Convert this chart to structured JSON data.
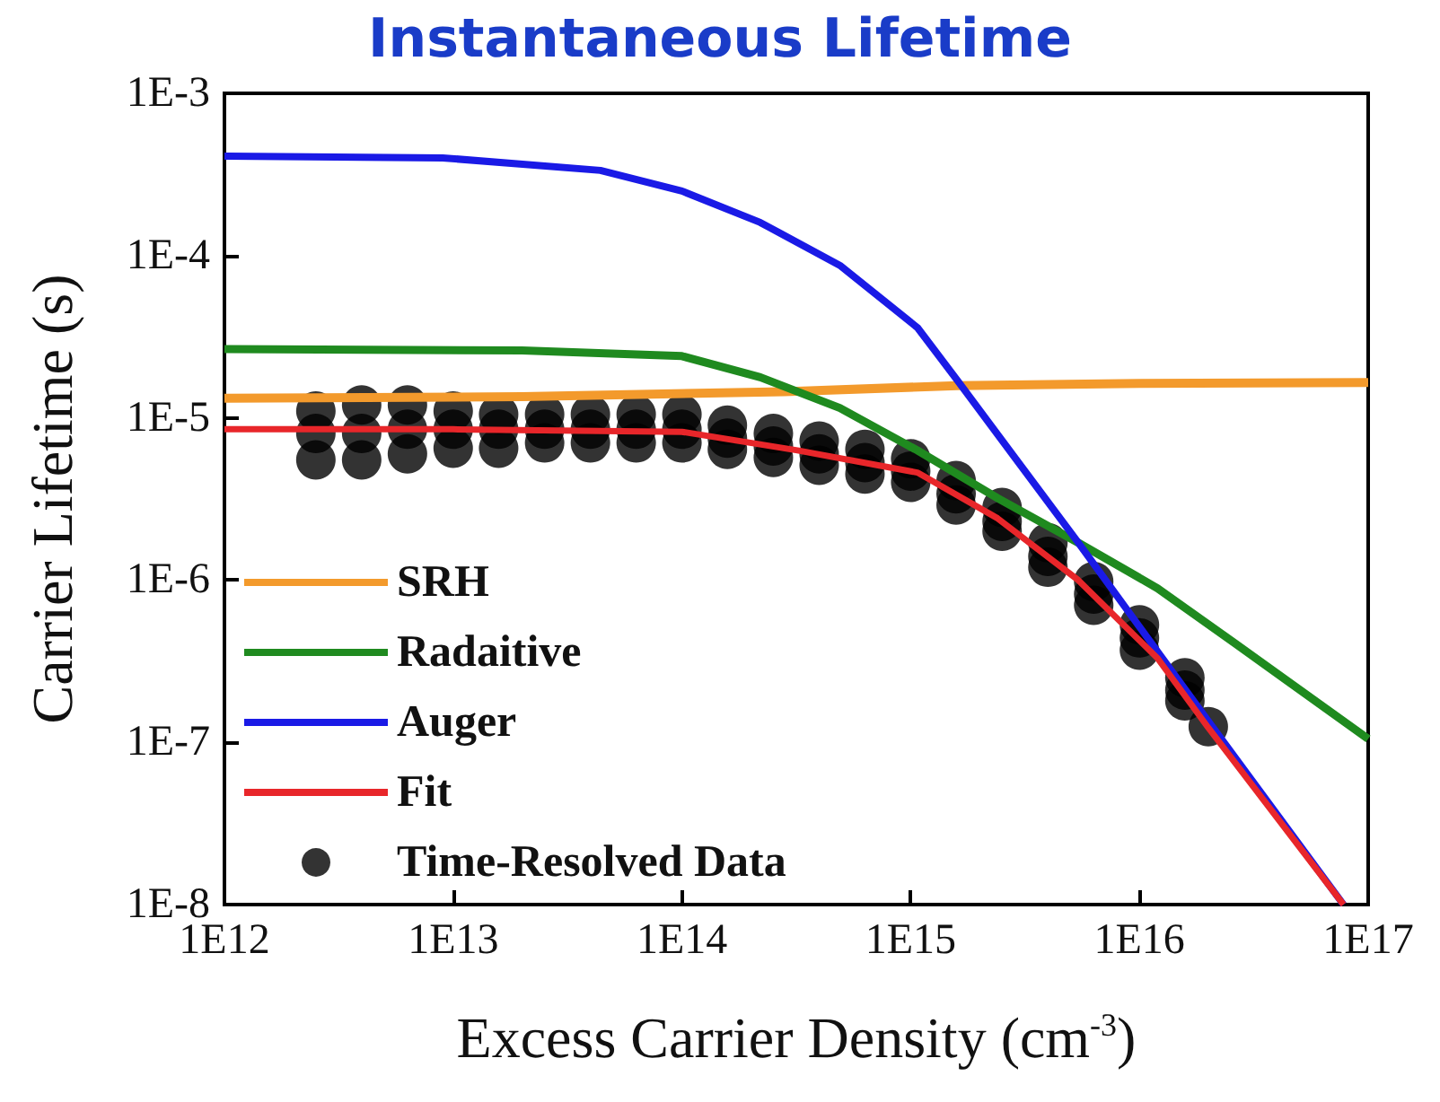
{
  "chart_data": {
    "type": "line",
    "title": "Instantaneous Lifetime",
    "xlabel": "Excess Carrier Density (cm$^{-3}$)",
    "ylabel": "Carrier Lifetime (s)",
    "log": "xy",
    "grid": false,
    "legend": "bottom left",
    "marker": "none",
    "xlim": [
      1000000000000.0,
      1e+17
    ],
    "xticks": [
      {
        "value": 1000000000000.0,
        "label": "1E12"
      },
      {
        "value": 10000000000000.0,
        "label": "1E13"
      },
      {
        "value": 100000000000000.0,
        "label": "1E14"
      },
      {
        "value": 1000000000000000.0,
        "label": "1E15"
      },
      {
        "value": 1e+16,
        "label": "1E16"
      },
      {
        "value": 1e+17,
        "label": "1E17"
      }
    ],
    "ylim": [
      1e-08,
      0.001
    ],
    "yticks": [
      {
        "value": 1e-08,
        "label": "1E-8"
      },
      {
        "value": 1e-07,
        "label": "1E-7"
      },
      {
        "value": 1e-06,
        "label": "1E-6"
      },
      {
        "value": 1e-05,
        "label": "1E-5"
      },
      {
        "value": 0.0001,
        "label": "1E-4"
      },
      {
        "value": 0.001,
        "label": "1E-3"
      }
    ],
    "series": [
      {
        "name": "SRH",
        "color": "#f39a2c",
        "x": [
          1000000000000.0,
          20000000000000.0,
          280000000000000.0,
          1600000000000000.0,
          1e+16,
          1e+17
        ],
        "values": [
          1.32e-05,
          1.35e-05,
          1.45e-05,
          1.58e-05,
          1.63e-05,
          1.65e-05
        ]
      },
      {
        "name": "Radaitive",
        "color": "#1f8a1f",
        "x": [
          1000000000000.0,
          20000000000000.0,
          100000000000000.0,
          220000000000000.0,
          490000000000000.0,
          1070000000000000.0,
          2400000000000000.0,
          5400000000000000.0,
          1.2e+16,
          2.6e+16,
          1e+17
        ],
        "values": [
          2.65e-05,
          2.6e-05,
          2.4e-05,
          1.78e-05,
          1.15e-05,
          6.3e-06,
          3.2e-06,
          1.7e-06,
          8.9e-07,
          4.1e-07,
          1.05e-07
        ]
      },
      {
        "name": "Auger",
        "color": "#1a1ae6",
        "x": [
          1000000000000.0,
          9000000000000.0,
          44000000000000.0,
          100000000000000.0,
          220000000000000.0,
          490000000000000.0,
          1070000000000000.0,
          1600000000000000.0,
          5400000000000000.0,
          2e+16,
          7.8e+16
        ],
        "values": [
          0.00041,
          0.0004,
          0.000335,
          0.00025,
          0.00016,
          8.7e-05,
          3.6e-05,
          1.7e-05,
          1.7e-06,
          1.35e-07,
          1e-08
        ]
      },
      {
        "name": "Fit",
        "color": "#e8262a",
        "x": [
          1000000000000.0,
          10000000000000.0,
          100000000000000.0,
          320000000000000.0,
          1070000000000000.0,
          2400000000000000.0,
          5400000000000000.0,
          1.2e+16,
          2e+16,
          7.8e+16
        ],
        "values": [
          8.5e-06,
          8.5e-06,
          8.2e-06,
          6.3e-06,
          4.6e-06,
          2.4e-06,
          1e-06,
          3.3e-07,
          1.23e-07,
          1e-08
        ]
      },
      {
        "name": "Time-Resolved Data",
        "type": "scatter",
        "marker": "circle",
        "color": "#000000",
        "x": [
          2510000000000.0,
          2510000000000.0,
          2510000000000.0,
          3980000000000.0,
          3980000000000.0,
          3980000000000.0,
          6310000000000.0,
          6310000000000.0,
          6310000000000.0,
          10000000000000.0,
          10000000000000.0,
          10000000000000.0,
          15800000000000.0,
          15800000000000.0,
          15800000000000.0,
          25100000000000.0,
          25100000000000.0,
          25100000000000.0,
          39800000000000.0,
          39800000000000.0,
          39800000000000.0,
          63100000000000.0,
          63100000000000.0,
          63100000000000.0,
          100000000000000.0,
          100000000000000.0,
          100000000000000.0,
          158000000000000.0,
          158000000000000.0,
          158000000000000.0,
          251000000000000.0,
          251000000000000.0,
          251000000000000.0,
          398000000000000.0,
          398000000000000.0,
          398000000000000.0,
          631000000000000.0,
          631000000000000.0,
          631000000000000.0,
          1000000000000000.0,
          1000000000000000.0,
          1000000000000000.0,
          1580000000000000.0,
          1580000000000000.0,
          1580000000000000.0,
          2510000000000000.0,
          2510000000000000.0,
          2510000000000000.0,
          3980000000000000.0,
          3980000000000000.0,
          3980000000000000.0,
          6310000000000000.0,
          6310000000000000.0,
          6310000000000000.0,
          1e+16,
          1e+16,
          1e+16,
          1.58e+16,
          1.58e+16,
          1.58e+16,
          2e+16
        ],
        "values": [
          8e-06,
          1.1e-05,
          5.5e-06,
          8e-06,
          1.2e-05,
          5.5e-06,
          8.5e-06,
          1.2e-05,
          6e-06,
          8.5e-06,
          1.1e-05,
          6.5e-06,
          8.5e-06,
          1.05e-05,
          6.5e-06,
          8.5e-06,
          1.05e-05,
          7e-06,
          8.5e-06,
          1.05e-05,
          7e-06,
          8.5e-06,
          1.05e-05,
          7e-06,
          8.5e-06,
          1.05e-05,
          7e-06,
          7.5e-06,
          9e-06,
          6.4e-06,
          6.7e-06,
          8e-06,
          5.7e-06,
          6e-06,
          7.2e-06,
          5.1e-06,
          5.3e-06,
          6.4e-06,
          4.5e-06,
          4.7e-06,
          5.6e-06,
          4e-06,
          3.4e-06,
          4.1e-06,
          2.9e-06,
          2.3e-06,
          2.8e-06,
          2e-06,
          1.4e-06,
          1.7e-06,
          1.2e-06,
          8.2e-07,
          9.8e-07,
          7e-07,
          4.4e-07,
          5.3e-07,
          3.7e-07,
          2.1e-07,
          2.5e-07,
          1.8e-07,
          1.25e-07
        ]
      }
    ]
  }
}
